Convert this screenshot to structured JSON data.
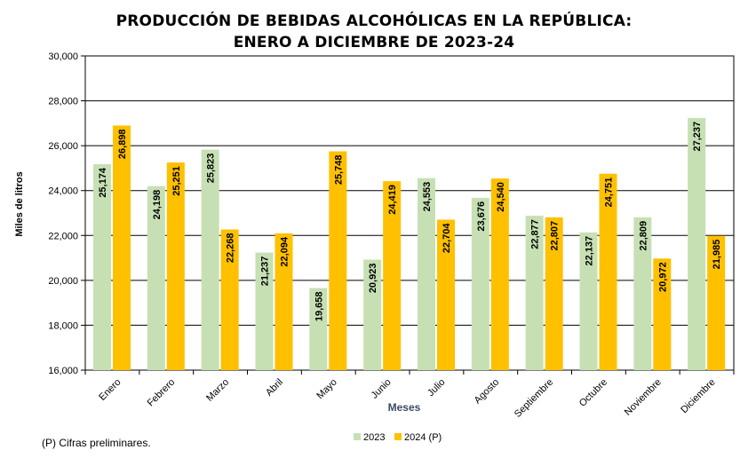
{
  "chart_data": {
    "type": "bar",
    "title": "PRODUCCIÓN DE BEBIDAS ALCOHÓLICAS EN LA REPÚBLICA:",
    "subtitle": "ENERO A DICIEMBRE DE 2023-24",
    "xlabel": "Meses",
    "ylabel": "Miles de litros",
    "ylim": [
      16000,
      30000
    ],
    "yticks": [
      "16,000",
      "18,000",
      "20,000",
      "22,000",
      "24,000",
      "26,000",
      "28,000",
      "30,000"
    ],
    "categories": [
      "Enero",
      "Febrero",
      "Marzo",
      "Abril",
      "Mayo",
      "Junio",
      "Julio",
      "Agosto",
      "Septiembre",
      "Octubre",
      "Noviembre",
      "Diciembre"
    ],
    "series": [
      {
        "name": "2023",
        "color": "#c6e0b4",
        "values": [
          25174,
          24198,
          25823,
          21237,
          19658,
          20923,
          24553,
          23676,
          22877,
          22137,
          22809,
          27237
        ],
        "labels": [
          "25,174",
          "24,198",
          "25,823",
          "21,237",
          "19,658",
          "20,923",
          "24,553",
          "23,676",
          "22,877",
          "22,137",
          "22,809",
          "27,237"
        ]
      },
      {
        "name": "2024 (P)",
        "color": "#ffc000",
        "values": [
          26898,
          25251,
          22268,
          22094,
          25748,
          24419,
          22704,
          24540,
          22807,
          24751,
          20972,
          21985
        ],
        "labels": [
          "26,898",
          "25,251",
          "22,268",
          "22,094",
          "25,748",
          "24,419",
          "22,704",
          "24,540",
          "22,807",
          "24,751",
          "20,972",
          "21,985"
        ]
      }
    ],
    "legend": "bottom-center",
    "grid": true
  },
  "footnote": "(P) Cifras  preliminares."
}
